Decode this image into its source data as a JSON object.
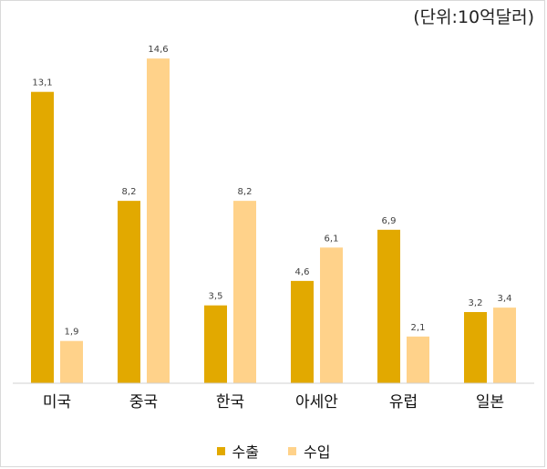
{
  "unit_label": "(단위:10억달러)",
  "chart_data": {
    "type": "bar",
    "categories": [
      "미국",
      "중국",
      "한국",
      "아세안",
      "유럽",
      "일본"
    ],
    "series": [
      {
        "name": "수출",
        "color": "#e2a900",
        "values": [
          13.1,
          8.2,
          3.5,
          4.6,
          6.9,
          3.2
        ],
        "labels": [
          "13,1",
          "8,2",
          "3,5",
          "4,6",
          "6,9",
          "3,2"
        ]
      },
      {
        "name": "수입",
        "color": "#ffd28a",
        "values": [
          1.9,
          14.6,
          8.2,
          6.1,
          2.1,
          3.4
        ],
        "labels": [
          "1,9",
          "14,6",
          "8,2",
          "6,1",
          "2,1",
          "3,4"
        ]
      }
    ],
    "ylim": [
      0,
      16
    ],
    "grid": false,
    "legend": "bottom"
  }
}
